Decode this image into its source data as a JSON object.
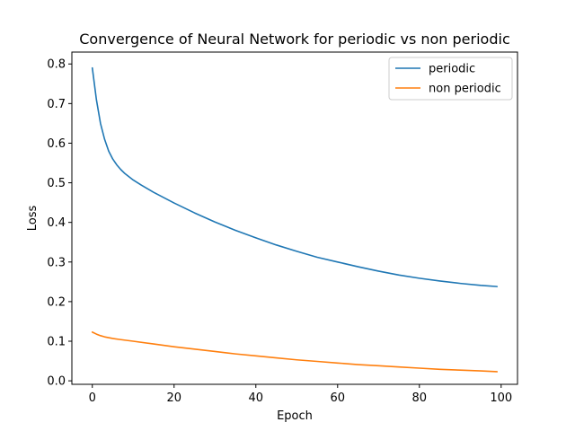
{
  "chart_data": {
    "type": "line",
    "title": "Convergence of Neural Network for periodic vs non periodic",
    "xlabel": "Epoch",
    "ylabel": "Loss",
    "xlim": [
      -5,
      104
    ],
    "ylim": [
      -0.0088,
      0.83
    ],
    "xticks": [
      0,
      20,
      40,
      60,
      80,
      100
    ],
    "yticks": [
      0.0,
      0.1,
      0.2,
      0.3,
      0.4,
      0.5,
      0.6,
      0.7,
      0.8
    ],
    "grid": false,
    "legend": "top-right",
    "series": [
      {
        "name": "periodic",
        "color": "#1f77b4",
        "x": [
          0,
          1,
          2,
          3,
          4,
          5,
          6,
          7,
          8,
          10,
          12,
          15,
          20,
          25,
          30,
          35,
          40,
          45,
          50,
          55,
          60,
          65,
          70,
          75,
          80,
          85,
          90,
          95,
          99
        ],
        "y": [
          0.79,
          0.71,
          0.65,
          0.61,
          0.58,
          0.56,
          0.545,
          0.533,
          0.523,
          0.507,
          0.494,
          0.476,
          0.449,
          0.424,
          0.401,
          0.38,
          0.361,
          0.343,
          0.327,
          0.312,
          0.3,
          0.288,
          0.277,
          0.267,
          0.259,
          0.252,
          0.246,
          0.241,
          0.238
        ]
      },
      {
        "name": "non periodic",
        "color": "#ff7f0e",
        "x": [
          0,
          1,
          2,
          3,
          4,
          5,
          7,
          10,
          15,
          20,
          25,
          30,
          35,
          40,
          45,
          50,
          55,
          60,
          65,
          70,
          75,
          80,
          85,
          90,
          95,
          99
        ],
        "y": [
          0.123,
          0.118,
          0.114,
          0.111,
          0.109,
          0.107,
          0.104,
          0.1,
          0.093,
          0.086,
          0.08,
          0.074,
          0.068,
          0.063,
          0.058,
          0.053,
          0.049,
          0.045,
          0.041,
          0.038,
          0.035,
          0.032,
          0.029,
          0.027,
          0.025,
          0.023
        ]
      }
    ]
  }
}
